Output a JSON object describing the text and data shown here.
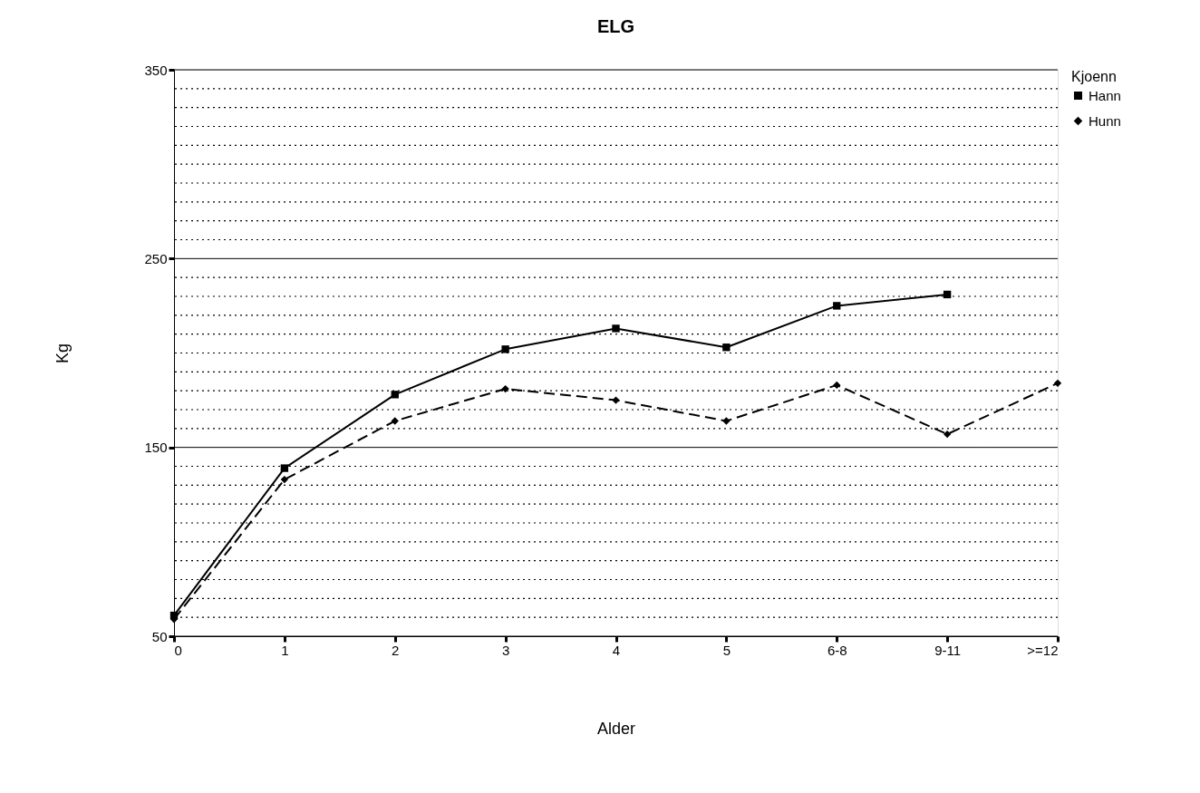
{
  "chart_data": {
    "type": "line",
    "title": "ELG",
    "xlabel": "Alder",
    "ylabel": "Kg",
    "legend_title": "Kjoenn",
    "categories": [
      "0",
      "1",
      "2",
      "3",
      "4",
      "5",
      "6-8",
      "9-11",
      ">=12"
    ],
    "series": [
      {
        "name": "Hann",
        "color": "#000000",
        "marker": "square",
        "line_style": "solid",
        "values": [
          61,
          139,
          178,
          202,
          213,
          203,
          225,
          231,
          null
        ]
      },
      {
        "name": "Hunn",
        "color": "#000000",
        "marker": "diamond",
        "line_style": "dashed",
        "values": [
          59,
          133,
          164,
          181,
          175,
          164,
          183,
          157,
          184
        ]
      }
    ],
    "ylim": [
      50,
      350
    ],
    "yticks": [
      50,
      {
        "value": 60,
        "label": null
      },
      {
        "value": 70,
        "label": null
      },
      {
        "value": 80,
        "label": null
      },
      {
        "value": 90,
        "label": null
      },
      {
        "value": 100,
        "label": null
      },
      {
        "value": 110,
        "label": null
      },
      {
        "value": 120,
        "label": null
      },
      {
        "value": 130,
        "label": null
      },
      {
        "value": 140,
        "label": null
      },
      150,
      {
        "value": 160,
        "label": null
      },
      {
        "value": 170,
        "label": null
      },
      {
        "value": 180,
        "label": null
      },
      {
        "value": 190,
        "label": null
      },
      {
        "value": 200,
        "label": null
      },
      {
        "value": 210,
        "label": null
      },
      {
        "value": 220,
        "label": null
      },
      {
        "value": 230,
        "label": null
      },
      {
        "value": 240,
        "label": null
      },
      250,
      {
        "value": 260,
        "label": null
      },
      {
        "value": 270,
        "label": null
      },
      {
        "value": 280,
        "label": null
      },
      {
        "value": 290,
        "label": null
      },
      {
        "value": 300,
        "label": null
      },
      {
        "value": 310,
        "label": null
      },
      {
        "value": 320,
        "label": null
      },
      {
        "value": 330,
        "label": null
      },
      {
        "value": 340,
        "label": null
      },
      350
    ],
    "grid": "y",
    "legend": "right"
  }
}
